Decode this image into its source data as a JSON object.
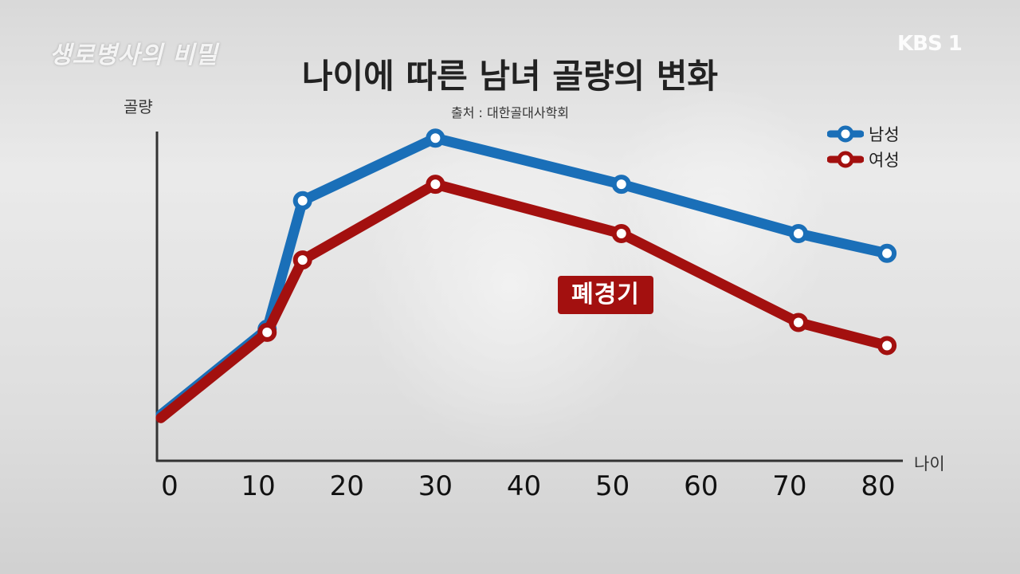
{
  "program_logo": "생로병사의 비밀",
  "broadcaster_logo": "KBS 1",
  "chart_data": {
    "type": "line",
    "title": "나이에 따른 남녀 골량의 변화",
    "subtitle": "출처 : 대한골대사학회",
    "ylabel": "골량",
    "xlabel": "나이",
    "xticks": [
      0,
      10,
      20,
      30,
      40,
      50,
      60,
      70,
      80
    ],
    "xlim": [
      0,
      80
    ],
    "ylim": [
      0,
      100
    ],
    "grid": false,
    "legend_position": "top-right",
    "series": [
      {
        "name": "남성",
        "color": "#1a6fb8",
        "x": [
          -1,
          11,
          15,
          30,
          51,
          71,
          81
        ],
        "y": [
          14,
          40,
          79,
          98,
          84,
          69,
          63
        ],
        "markers": [
          false,
          true,
          true,
          true,
          true,
          true,
          true
        ]
      },
      {
        "name": "여성",
        "color": "#a3100f",
        "x": [
          -1,
          11,
          15,
          30,
          51,
          71,
          81
        ],
        "y": [
          13,
          39,
          61,
          84,
          69,
          42,
          35
        ],
        "markers": [
          false,
          true,
          true,
          true,
          true,
          true,
          true
        ]
      }
    ],
    "annotations": [
      {
        "text": "폐경기",
        "color": "#a3100f"
      }
    ]
  }
}
